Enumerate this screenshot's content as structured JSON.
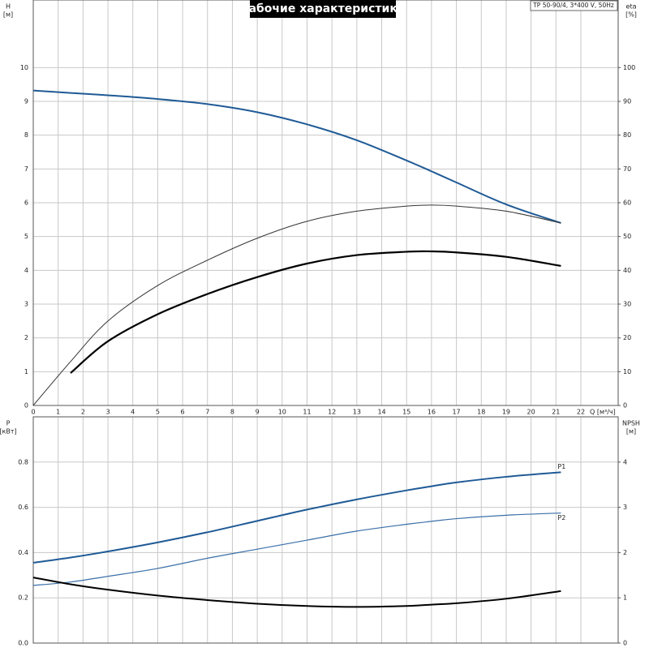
{
  "chart_data": [
    {
      "type": "line",
      "title": "Рабочие характеристики",
      "subtitle": "TP 50-90/4, 3*400 V, 50Hz",
      "y_label": "H",
      "y_unit": "[м]",
      "y2_label": "eta",
      "y2_unit": "[%]",
      "x_label": "Q [м³/ч]",
      "x": [
        0,
        1.5,
        3,
        5,
        7,
        9,
        11,
        13,
        15,
        16,
        17,
        19,
        21.2
      ],
      "series": [
        {
          "color": "#1f5a96",
          "width": 2,
          "values": [
            9.32,
            9.25,
            9.18,
            9.07,
            8.92,
            8.68,
            8.32,
            7.85,
            7.25,
            6.93,
            6.6,
            5.95,
            5.4
          ]
        },
        {
          "color": "#333333",
          "width": 1,
          "axis": "y2",
          "values": [
            0,
            13,
            25,
            35.5,
            43,
            49.5,
            54.5,
            57.5,
            59,
            59.3,
            59,
            57.5,
            54
          ]
        },
        {
          "color": "#000000",
          "width": 2.2,
          "axis": "y2",
          "values": [
            null,
            9.6,
            19,
            27,
            33,
            38,
            42,
            44.5,
            45.5,
            45.6,
            45.3,
            44,
            41.3
          ]
        }
      ],
      "xlim": [
        0,
        23.5
      ],
      "xticks": [
        0,
        1,
        2,
        3,
        4,
        5,
        6,
        7,
        8,
        9,
        10,
        11,
        12,
        13,
        14,
        15,
        16,
        17,
        18,
        19,
        20,
        21,
        22
      ],
      "ylim": [
        0,
        12
      ],
      "yticks": [
        0,
        1,
        2,
        3,
        4,
        5,
        6,
        7,
        8,
        9,
        10
      ],
      "y2lim": [
        0,
        120
      ],
      "y2ticks": [
        0,
        10,
        20,
        30,
        40,
        50,
        60,
        70,
        80,
        90,
        100
      ],
      "grid": true
    },
    {
      "type": "line",
      "y_label": "P",
      "y_unit": "[кВт]",
      "y2_label": "NPSH",
      "y2_unit": "[м]",
      "x": [
        0,
        1.5,
        3,
        5,
        7,
        9,
        11,
        13,
        15,
        16,
        17,
        19,
        21.2
      ],
      "series": [
        {
          "name": "P1",
          "color": "#1f5a96",
          "width": 2,
          "values": [
            0.355,
            0.378,
            0.405,
            0.445,
            0.49,
            0.54,
            0.59,
            0.635,
            0.675,
            0.693,
            0.71,
            0.735,
            0.755
          ]
        },
        {
          "name": "P2",
          "color": "#3a6fa8",
          "width": 1.2,
          "values": [
            0.255,
            0.27,
            0.295,
            0.33,
            0.375,
            0.415,
            0.455,
            0.495,
            0.525,
            0.538,
            0.55,
            0.565,
            0.575
          ]
        },
        {
          "color": "#000000",
          "width": 2,
          "axis": "y2",
          "values": [
            1.45,
            1.3,
            1.18,
            1.05,
            0.95,
            0.87,
            0.82,
            0.8,
            0.82,
            0.85,
            0.88,
            0.98,
            1.15
          ]
        }
      ],
      "xlim": [
        0,
        23.5
      ],
      "ylim": [
        0,
        1
      ],
      "yticks": [
        {
          "value": 0,
          "label": "0.0"
        },
        0.2,
        0.4,
        0.6,
        0.8
      ],
      "y2lim": [
        0,
        5
      ],
      "y2ticks": [
        0,
        1,
        2,
        3,
        4
      ],
      "grid": true
    }
  ]
}
